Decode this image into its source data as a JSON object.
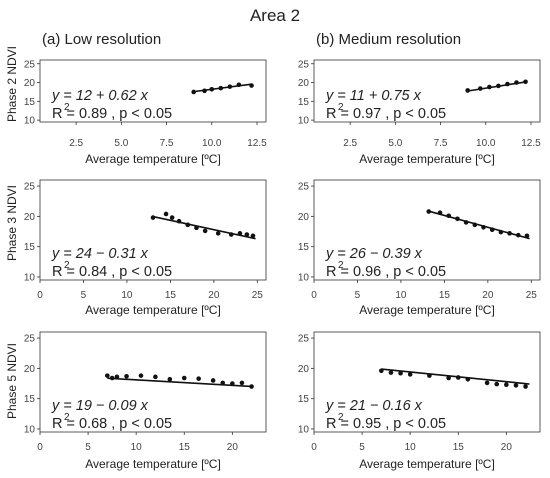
{
  "figure": {
    "title": "Area 2",
    "columns": [
      "(a) Low resolution",
      "(b) Medium resolution"
    ],
    "row_labels": [
      "Phase 2 NDVI",
      "Phase 3 NDVI",
      "Phase 5 NDVI"
    ],
    "xlabel": "Average temperature [ºC]"
  },
  "chart_data": [
    {
      "type": "scatter",
      "panel": "phase2-low",
      "xlim": [
        0.5,
        13
      ],
      "ylim": [
        9.5,
        26
      ],
      "xticks": [
        "2.5",
        "5.0",
        "7.5",
        "10.0",
        "12.5"
      ],
      "xtick_values": [
        2.5,
        5.0,
        7.5,
        10.0,
        12.5
      ],
      "yticks": [
        "10",
        "15",
        "20",
        "25"
      ],
      "ytick_values": [
        10,
        15,
        20,
        25
      ],
      "x": [
        9.0,
        9.6,
        10.0,
        10.5,
        11.0,
        11.5,
        12.2
      ],
      "y": [
        17.5,
        17.8,
        18.2,
        18.5,
        18.9,
        19.4,
        19.2
      ],
      "fit": {
        "intercept": 12,
        "slope": 0.62,
        "x_range": [
          9.0,
          12.2
        ]
      },
      "equation": "y = 12 + 0.62 x",
      "r2_text": "R  = 0.89 , p < 0.05"
    },
    {
      "type": "scatter",
      "panel": "phase2-medium",
      "xlim": [
        0.5,
        13
      ],
      "ylim": [
        9.5,
        26
      ],
      "xticks": [
        "2.5",
        "5.0",
        "7.5",
        "10.0",
        "12.5"
      ],
      "xtick_values": [
        2.5,
        5.0,
        7.5,
        10.0,
        12.5
      ],
      "yticks": [
        "10",
        "15",
        "20",
        "25"
      ],
      "ytick_values": [
        10,
        15,
        20,
        25
      ],
      "x": [
        9.0,
        9.7,
        10.2,
        10.7,
        11.2,
        11.7,
        12.2
      ],
      "y": [
        17.9,
        18.4,
        18.8,
        19.1,
        19.6,
        20.0,
        20.2
      ],
      "fit": {
        "intercept": 11,
        "slope": 0.75,
        "x_range": [
          9.0,
          12.3
        ]
      },
      "equation": "y = 11 + 0.75 x",
      "r2_text": "R  = 0.97 , p < 0.05"
    },
    {
      "type": "scatter",
      "panel": "phase3-low",
      "xlim": [
        0,
        26
      ],
      "ylim": [
        9.5,
        26
      ],
      "xticks": [
        "0",
        "5",
        "10",
        "15",
        "20",
        "25"
      ],
      "xtick_values": [
        0,
        5,
        10,
        15,
        20,
        25
      ],
      "yticks": [
        "10",
        "15",
        "20",
        "25"
      ],
      "ytick_values": [
        10,
        15,
        20,
        25
      ],
      "x": [
        13.0,
        14.5,
        15.2,
        16.0,
        17.0,
        18.0,
        19.0,
        20.5,
        22.0,
        23.0,
        23.8,
        24.5
      ],
      "y": [
        19.8,
        20.4,
        19.8,
        19.2,
        18.6,
        18.1,
        17.6,
        17.2,
        17.0,
        17.2,
        17.0,
        16.8
      ],
      "fit": {
        "intercept": 24,
        "slope": -0.31,
        "x_range": [
          13.0,
          24.8
        ]
      },
      "equation": "y = 24 − 0.31 x",
      "r2_text": "R  = 0.84 , p < 0.05"
    },
    {
      "type": "scatter",
      "panel": "phase3-medium",
      "xlim": [
        0,
        26
      ],
      "ylim": [
        9.5,
        26
      ],
      "xticks": [
        "0",
        "5",
        "10",
        "15",
        "20",
        "25"
      ],
      "xtick_values": [
        0,
        5,
        10,
        15,
        20,
        25
      ],
      "yticks": [
        "10",
        "15",
        "20",
        "25"
      ],
      "ytick_values": [
        10,
        15,
        20,
        25
      ],
      "x": [
        13.2,
        14.5,
        15.5,
        16.5,
        17.5,
        18.5,
        19.5,
        20.5,
        21.5,
        22.5,
        23.5,
        24.5
      ],
      "y": [
        20.8,
        20.6,
        20.1,
        19.6,
        19.0,
        18.6,
        18.2,
        17.8,
        17.4,
        17.2,
        16.9,
        16.8
      ],
      "fit": {
        "intercept": 26,
        "slope": -0.39,
        "x_range": [
          13.2,
          24.8
        ]
      },
      "equation": "y = 26 − 0.39 x",
      "r2_text": "R  = 0.96 , p < 0.05"
    },
    {
      "type": "scatter",
      "panel": "phase5-low",
      "xlim": [
        0,
        23.5
      ],
      "ylim": [
        9.5,
        26
      ],
      "xticks": [
        "0",
        "5",
        "10",
        "15",
        "20"
      ],
      "xtick_values": [
        0,
        5,
        10,
        15,
        20
      ],
      "yticks": [
        "10",
        "15",
        "20",
        "25"
      ],
      "ytick_values": [
        10,
        15,
        20,
        25
      ],
      "x": [
        7.0,
        7.5,
        8.0,
        9.0,
        10.5,
        12.0,
        13.5,
        15.0,
        16.5,
        18.0,
        19.0,
        20.0,
        21.0,
        22.0
      ],
      "y": [
        18.8,
        18.4,
        18.6,
        18.7,
        18.8,
        18.6,
        18.2,
        18.4,
        18.3,
        18.0,
        17.6,
        17.5,
        17.6,
        17.0
      ],
      "fit": {
        "intercept": 19,
        "slope": -0.09,
        "x_range": [
          7.0,
          22.2
        ]
      },
      "equation": "y = 19 − 0.09 x",
      "r2_text": "R  = 0.68 , p < 0.05"
    },
    {
      "type": "scatter",
      "panel": "phase5-medium",
      "xlim": [
        0,
        23.5
      ],
      "ylim": [
        9.5,
        26
      ],
      "xticks": [
        "0",
        "5",
        "10",
        "15",
        "20"
      ],
      "xtick_values": [
        0,
        5,
        10,
        15,
        20
      ],
      "yticks": [
        "10",
        "15",
        "20",
        "25"
      ],
      "ytick_values": [
        10,
        15,
        20,
        25
      ],
      "x": [
        7.0,
        8.0,
        9.0,
        10.0,
        12.0,
        14.0,
        15.0,
        16.0,
        18.0,
        19.0,
        20.0,
        21.0,
        22.0
      ],
      "y": [
        19.6,
        19.3,
        19.2,
        19.0,
        18.8,
        18.4,
        18.5,
        18.2,
        17.6,
        17.4,
        17.3,
        17.2,
        17.0
      ],
      "fit": {
        "intercept": 21,
        "slope": -0.16,
        "x_range": [
          7.0,
          22.4
        ]
      },
      "equation": "y = 21 − 0.16 x",
      "r2_text": "R  = 0.95 , p < 0.05"
    }
  ]
}
